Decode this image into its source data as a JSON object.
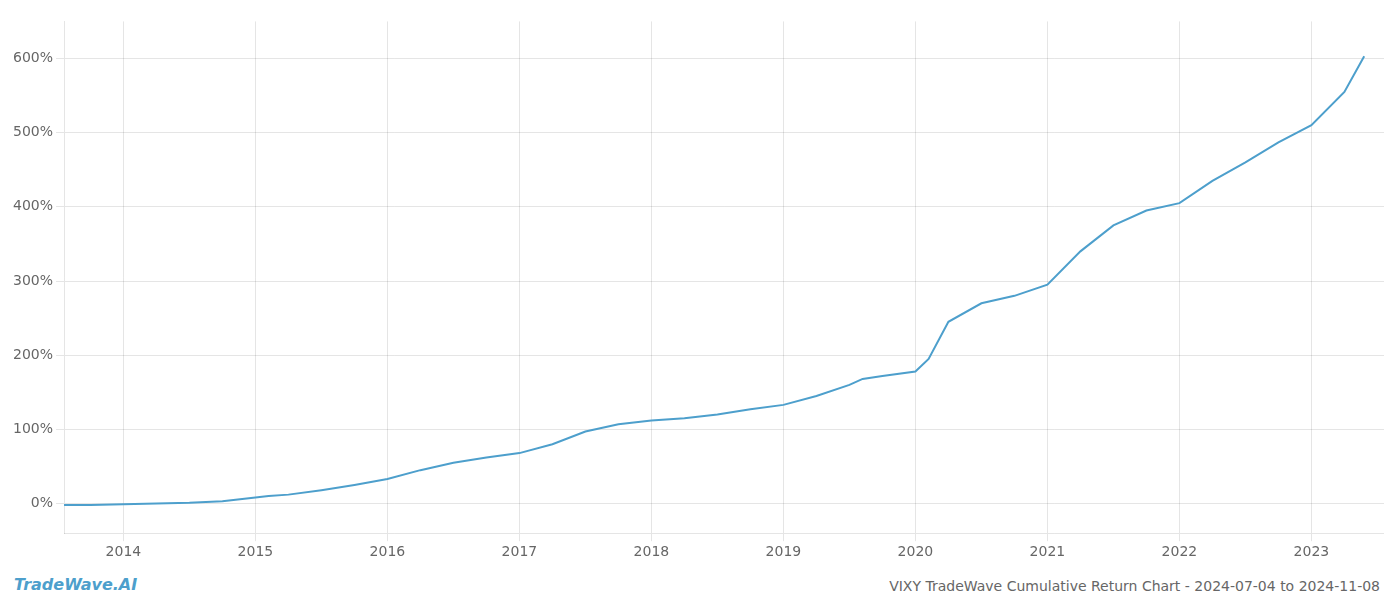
{
  "chart_data": {
    "type": "line",
    "title": "VIXY TradeWave Cumulative Return Chart - 2024-07-04 to 2024-11-08",
    "annotations": [
      "TradeWave.AI"
    ],
    "color": "#4d9fcc",
    "x": [
      2013.55,
      2013.75,
      2014.0,
      2014.25,
      2014.5,
      2014.75,
      2015.0,
      2015.1,
      2015.25,
      2015.5,
      2015.75,
      2016.0,
      2016.25,
      2016.5,
      2016.75,
      2017.0,
      2017.25,
      2017.5,
      2017.75,
      2018.0,
      2018.25,
      2018.5,
      2018.75,
      2019.0,
      2019.25,
      2019.5,
      2019.6,
      2019.75,
      2020.0,
      2020.1,
      2020.25,
      2020.5,
      2020.75,
      2021.0,
      2021.25,
      2021.5,
      2021.75,
      2022.0,
      2022.25,
      2022.5,
      2022.75,
      2023.0,
      2023.25,
      2023.4
    ],
    "values": [
      -2,
      -2,
      -1,
      0,
      1,
      3,
      8,
      10,
      12,
      18,
      25,
      33,
      45,
      55,
      62,
      68,
      80,
      97,
      107,
      112,
      115,
      120,
      127,
      133,
      145,
      160,
      168,
      172,
      178,
      195,
      245,
      270,
      280,
      295,
      340,
      375,
      395,
      405,
      435,
      460,
      487,
      510,
      555,
      603
    ],
    "xlim": [
      2013.55,
      2023.55
    ],
    "xticks": [
      2014,
      2015,
      2016,
      2017,
      2018,
      2019,
      2020,
      2021,
      2022,
      2023
    ],
    "ylim": [
      -40,
      650
    ],
    "yticks": [
      {
        "value": 0,
        "label": "0%"
      },
      {
        "value": 100,
        "label": "100%"
      },
      {
        "value": 200,
        "label": "200%"
      },
      {
        "value": 300,
        "label": "300%"
      },
      {
        "value": 400,
        "label": "400%"
      },
      {
        "value": 500,
        "label": "500%"
      },
      {
        "value": 600,
        "label": "600%"
      }
    ],
    "grid": true
  }
}
